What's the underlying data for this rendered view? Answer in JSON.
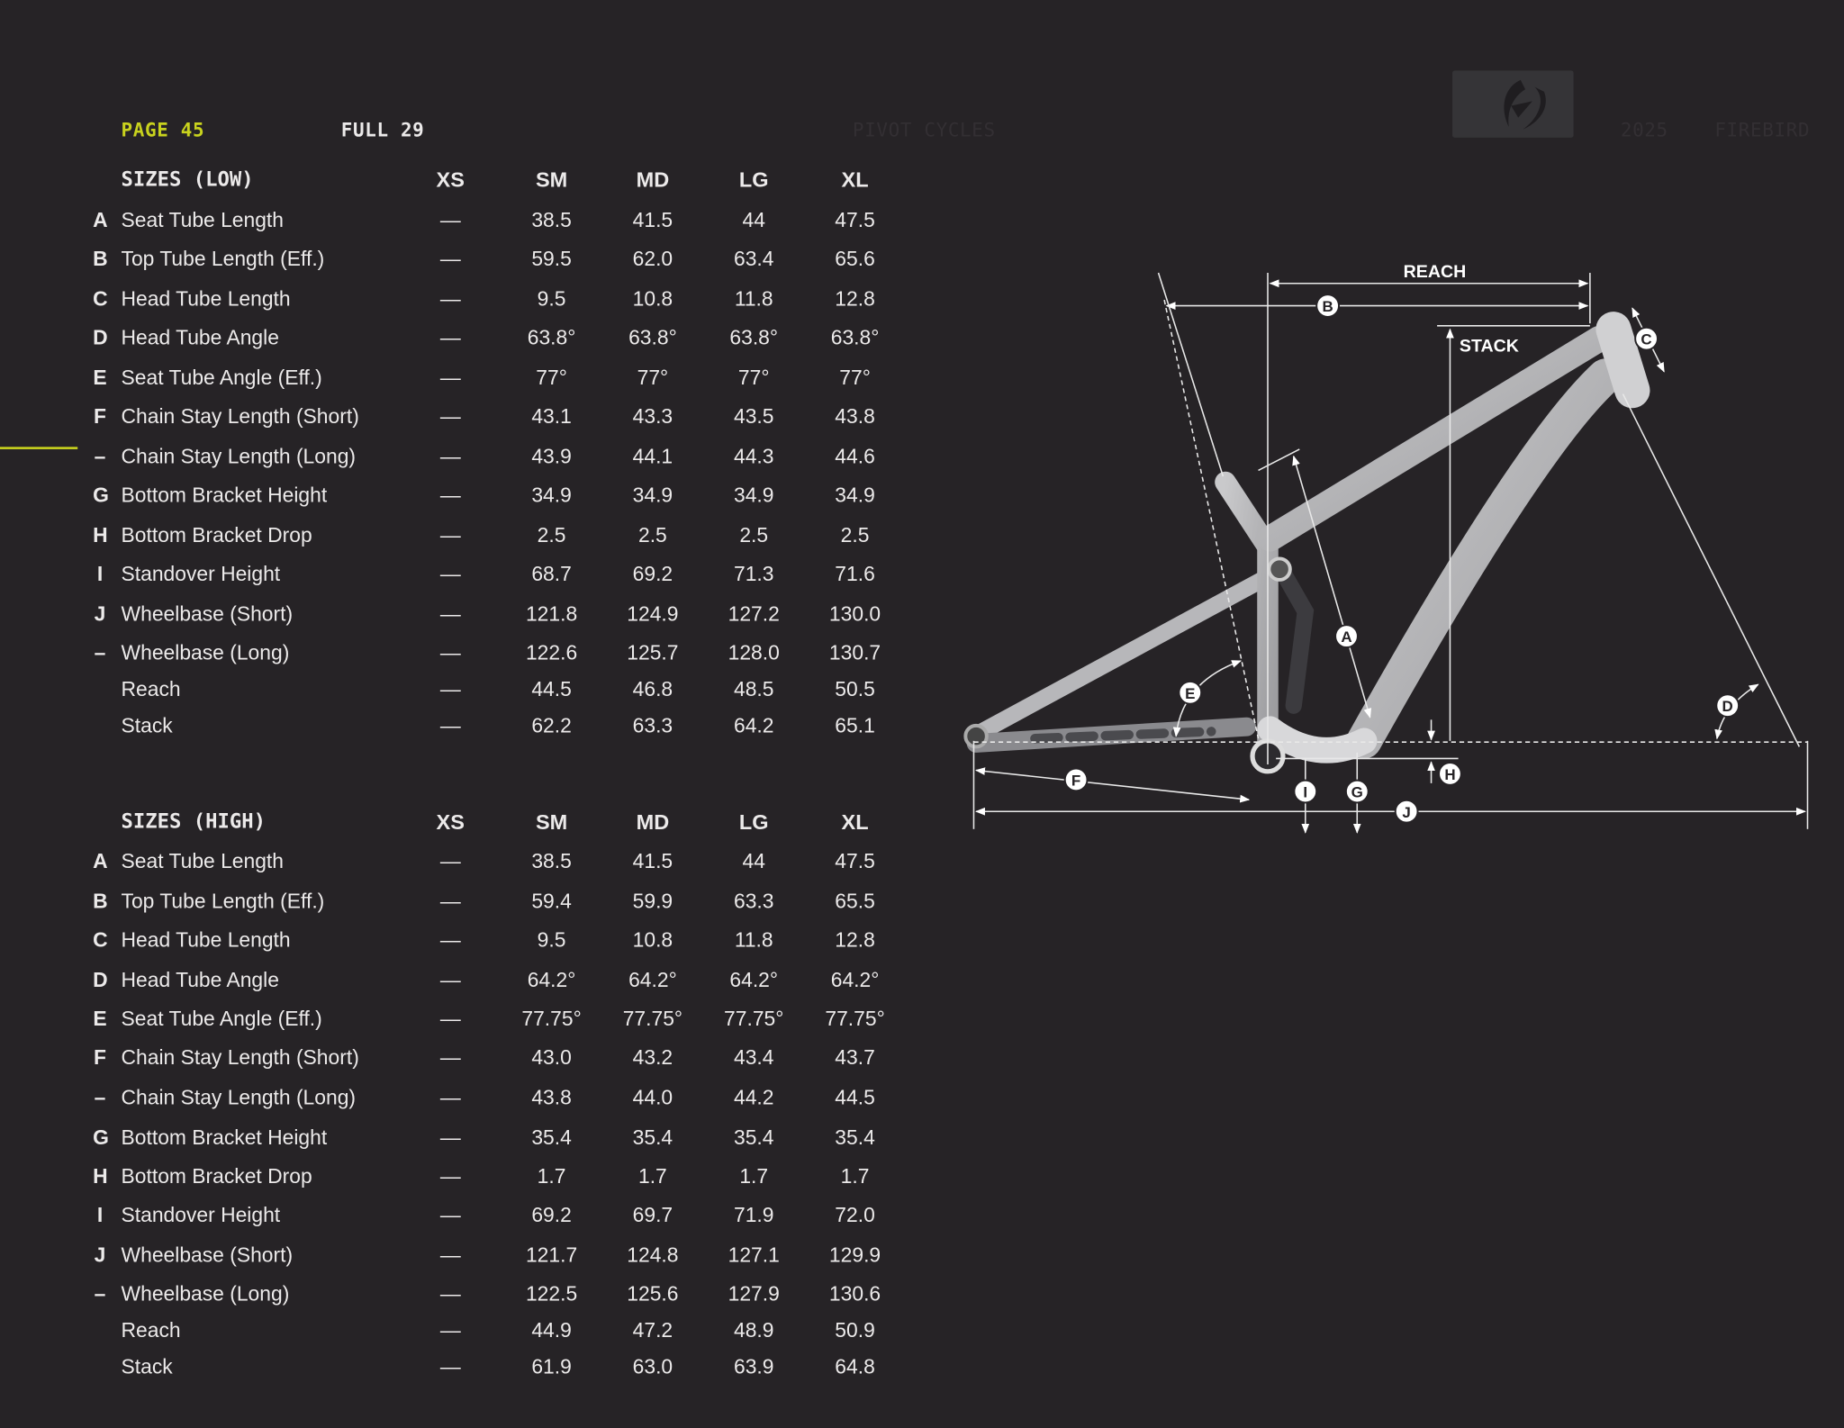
{
  "header": {
    "page": "PAGE 45",
    "category": "FULL 29",
    "brand": "PIVOT CYCLES",
    "year": "2025",
    "model": "FIREBIRD",
    "accent_color": "#c8d21e",
    "logo_icon": "pivot-logo-icon"
  },
  "columns": [
    "XS",
    "SM",
    "MD",
    "LG",
    "XL"
  ],
  "tables": [
    {
      "title": "SIZES (LOW)",
      "rows": [
        {
          "letter": "A",
          "label": "Seat Tube Length",
          "values": [
            "—",
            "38.5",
            "41.5",
            "44",
            "47.5"
          ]
        },
        {
          "letter": "B",
          "label": "Top Tube Length (Eff.)",
          "values": [
            "—",
            "59.5",
            "62.0",
            "63.4",
            "65.6"
          ]
        },
        {
          "letter": "C",
          "label": "Head Tube Length",
          "values": [
            "—",
            "9.5",
            "10.8",
            "11.8",
            "12.8"
          ]
        },
        {
          "letter": "D",
          "label": "Head Tube Angle",
          "values": [
            "—",
            "63.8°",
            "63.8°",
            "63.8°",
            "63.8°"
          ]
        },
        {
          "letter": "E",
          "label": "Seat Tube Angle (Eff.)",
          "values": [
            "—",
            "77°",
            "77°",
            "77°",
            "77°"
          ]
        },
        {
          "letter": "F",
          "label": "Chain Stay Length (Short)",
          "values": [
            "—",
            "43.1",
            "43.3",
            "43.5",
            "43.8"
          ]
        },
        {
          "letter": "–",
          "label": "Chain Stay Length (Long)",
          "values": [
            "—",
            "43.9",
            "44.1",
            "44.3",
            "44.6"
          ]
        },
        {
          "letter": "G",
          "label": "Bottom Bracket Height",
          "values": [
            "—",
            "34.9",
            "34.9",
            "34.9",
            "34.9"
          ]
        },
        {
          "letter": "H",
          "label": "Bottom Bracket Drop",
          "values": [
            "—",
            "2.5",
            "2.5",
            "2.5",
            "2.5"
          ]
        },
        {
          "letter": "I",
          "label": "Standover Height",
          "values": [
            "—",
            "68.7",
            "69.2",
            "71.3",
            "71.6"
          ]
        },
        {
          "letter": "J",
          "label": "Wheelbase (Short)",
          "values": [
            "—",
            "121.8",
            "124.9",
            "127.2",
            "130.0"
          ]
        },
        {
          "letter": "–",
          "label": "Wheelbase (Long)",
          "values": [
            "—",
            "122.6",
            "125.7",
            "128.0",
            "130.7"
          ]
        },
        {
          "letter": "",
          "label": "Reach",
          "values": [
            "—",
            "44.5",
            "46.8",
            "48.5",
            "50.5"
          ]
        },
        {
          "letter": "",
          "label": "Stack",
          "values": [
            "—",
            "62.2",
            "63.3",
            "64.2",
            "65.1"
          ]
        }
      ]
    },
    {
      "title": "SIZES (HIGH)",
      "rows": [
        {
          "letter": "A",
          "label": "Seat Tube Length",
          "values": [
            "—",
            "38.5",
            "41.5",
            "44",
            "47.5"
          ]
        },
        {
          "letter": "B",
          "label": "Top Tube Length (Eff.)",
          "values": [
            "—",
            "59.4",
            "59.9",
            "63.3",
            "65.5"
          ]
        },
        {
          "letter": "C",
          "label": "Head Tube Length",
          "values": [
            "—",
            "9.5",
            "10.8",
            "11.8",
            "12.8"
          ]
        },
        {
          "letter": "D",
          "label": "Head Tube Angle",
          "values": [
            "—",
            "64.2°",
            "64.2°",
            "64.2°",
            "64.2°"
          ]
        },
        {
          "letter": "E",
          "label": "Seat Tube Angle (Eff.)",
          "values": [
            "—",
            "77.75°",
            "77.75°",
            "77.75°",
            "77.75°"
          ]
        },
        {
          "letter": "F",
          "label": "Chain Stay Length (Short)",
          "values": [
            "—",
            "43.0",
            "43.2",
            "43.4",
            "43.7"
          ]
        },
        {
          "letter": "–",
          "label": "Chain Stay Length (Long)",
          "values": [
            "—",
            "43.8",
            "44.0",
            "44.2",
            "44.5"
          ]
        },
        {
          "letter": "G",
          "label": "Bottom Bracket Height",
          "values": [
            "—",
            "35.4",
            "35.4",
            "35.4",
            "35.4"
          ]
        },
        {
          "letter": "H",
          "label": "Bottom Bracket Drop",
          "values": [
            "—",
            "1.7",
            "1.7",
            "1.7",
            "1.7"
          ]
        },
        {
          "letter": "I",
          "label": "Standover Height",
          "values": [
            "—",
            "69.2",
            "69.7",
            "71.9",
            "72.0"
          ]
        },
        {
          "letter": "J",
          "label": "Wheelbase (Short)",
          "values": [
            "—",
            "121.7",
            "124.8",
            "127.1",
            "129.9"
          ]
        },
        {
          "letter": "–",
          "label": "Wheelbase (Long)",
          "values": [
            "—",
            "122.5",
            "125.6",
            "127.9",
            "130.6"
          ]
        },
        {
          "letter": "",
          "label": "Reach",
          "values": [
            "—",
            "44.9",
            "47.2",
            "48.9",
            "50.9"
          ]
        },
        {
          "letter": "",
          "label": "Stack",
          "values": [
            "—",
            "61.9",
            "63.0",
            "63.9",
            "64.8"
          ]
        }
      ]
    }
  ],
  "diagram": {
    "reach_label": "REACH",
    "stack_label": "STACK",
    "markers": {
      "A": "A",
      "B": "B",
      "C": "C",
      "D": "D",
      "E": "E",
      "F": "F",
      "G": "G",
      "H": "H",
      "I": "I",
      "J": "J"
    }
  }
}
